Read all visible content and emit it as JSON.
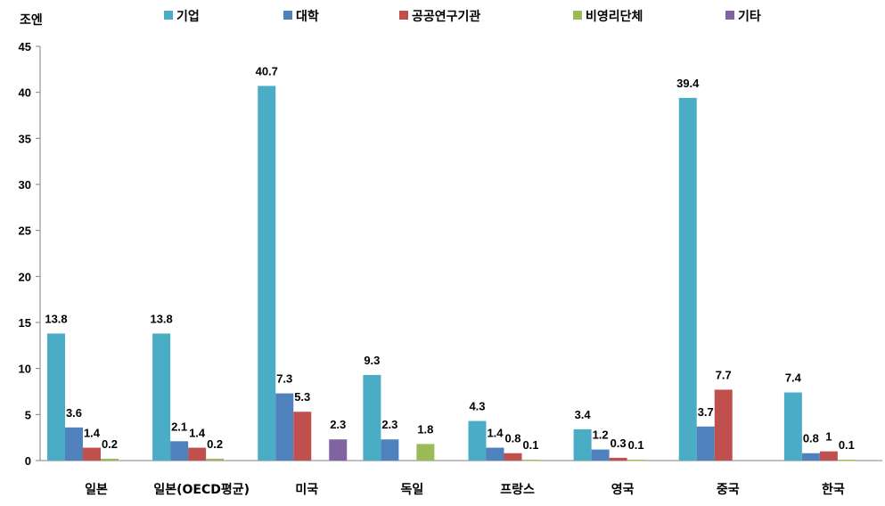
{
  "chart_data": {
    "type": "bar",
    "unit_label": "조엔",
    "ylim": [
      0,
      45
    ],
    "yticks": [
      0,
      5,
      10,
      15,
      20,
      25,
      30,
      35,
      40,
      45
    ],
    "grid": false,
    "legend_position": "top",
    "categories": [
      "일본",
      "일본(OECD평균)",
      "미국",
      "독일",
      "프랑스",
      "영국",
      "중국",
      "한국"
    ],
    "series": [
      {
        "name": "기업",
        "color": "#4BACC6",
        "values": [
          13.8,
          13.8,
          40.7,
          9.3,
          4.3,
          3.4,
          39.4,
          7.4
        ]
      },
      {
        "name": "대학",
        "color": "#4F81BD",
        "values": [
          3.6,
          2.1,
          7.3,
          2.3,
          1.4,
          1.2,
          3.7,
          0.8
        ]
      },
      {
        "name": "공공연구기관",
        "color": "#C0504D",
        "values": [
          1.4,
          1.4,
          5.3,
          null,
          0.8,
          0.3,
          7.7,
          1
        ]
      },
      {
        "name": "비영리단체",
        "color": "#9BBB59",
        "values": [
          0.2,
          0.2,
          null,
          1.8,
          0.1,
          0.1,
          null,
          0.1
        ]
      },
      {
        "name": "기타",
        "color": "#8064A2",
        "values": [
          null,
          null,
          2.3,
          null,
          null,
          null,
          null,
          null
        ]
      }
    ],
    "data_labels": [
      [
        "13.8",
        "13.8",
        "40.7",
        "9.3",
        "4.3",
        "3.4",
        "39.4",
        "7.4"
      ],
      [
        "3.6",
        "2.1",
        "7.3",
        "2.3",
        "1.4",
        "1.2",
        "3.7",
        "0.8"
      ],
      [
        "1.4",
        "1.4",
        "5.3",
        "",
        "0.8",
        "0.3",
        "7.7",
        "1"
      ],
      [
        "0.2",
        "0.2",
        "",
        "1.8",
        "0.1",
        "0.1",
        "",
        "0.1"
      ],
      [
        "",
        "",
        "2.3",
        "",
        "",
        "",
        "",
        ""
      ]
    ]
  }
}
